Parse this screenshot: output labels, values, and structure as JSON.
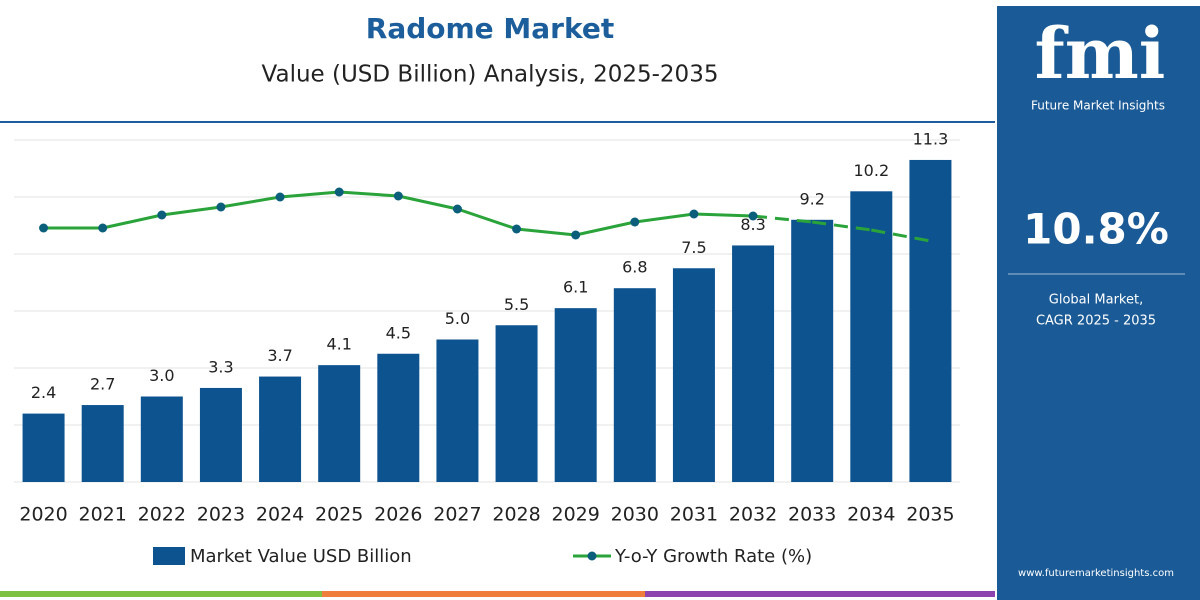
{
  "chart_data": {
    "type": "bar",
    "title": "Radome Market",
    "subtitle": "Value (USD Billion) Analysis, 2025-2035",
    "categories": [
      "2020",
      "2021",
      "2022",
      "2023",
      "2024",
      "2025",
      "2026",
      "2027",
      "2028",
      "2029",
      "2030",
      "2031",
      "2032",
      "2033",
      "2034",
      "2035"
    ],
    "series": [
      {
        "name": "Market Value USD Billion",
        "type": "bar",
        "color": "#0d5390",
        "values": [
          2.4,
          2.7,
          3.0,
          3.3,
          3.7,
          4.1,
          4.5,
          5.0,
          5.5,
          6.1,
          6.8,
          7.5,
          8.3,
          9.2,
          10.2,
          11.3
        ],
        "value_labels": [
          "2.4",
          "2.7",
          "3.0",
          "3.3",
          "3.7",
          "4.1",
          "4.5",
          "5.0",
          "5.5",
          "6.1",
          "6.8",
          "7.5",
          "8.3",
          "9.2",
          "10.2",
          "11.3"
        ]
      },
      {
        "name": "Y-o-Y Growth Rate (%)",
        "type": "line",
        "color": "#2aa43a",
        "marker_color": "#0b5f7a",
        "dashed_from": "2032",
        "values": [
          10.7,
          10.7,
          11.35,
          11.75,
          12.25,
          12.5,
          12.3,
          11.65,
          10.65,
          10.35,
          11.0,
          11.4,
          11.3,
          11.0,
          10.6,
          10.05
        ]
      }
    ],
    "ylim": [
      0,
      12
    ],
    "yticks": [
      0,
      2,
      4,
      6,
      8,
      10,
      12
    ],
    "grid": true
  },
  "sidebar": {
    "logo": "fmi",
    "brand": "Future Market Insights",
    "cagr": "10.8%",
    "caption_1": "Global Market,",
    "caption_2": "CAGR 2025 - 2035",
    "website": "www.futuremarketinsights.com"
  }
}
